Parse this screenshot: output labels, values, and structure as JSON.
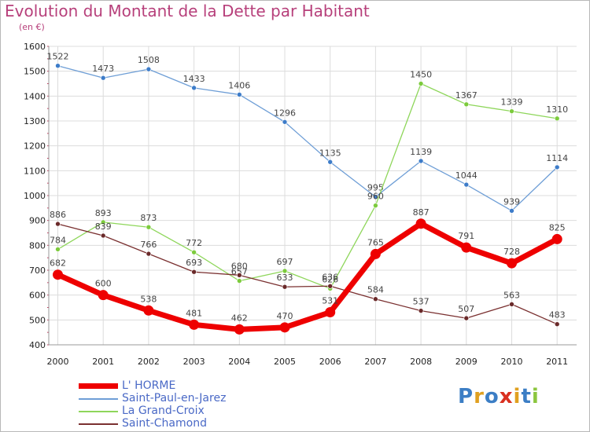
{
  "title": "Evolution du Montant de la Dette par Habitant",
  "subtitle": "(en €)",
  "logo": {
    "text": "Proxiti",
    "colors": [
      "#3c7ec5",
      "#e0a020",
      "#3c7ec5",
      "#d93020",
      "#e0a020",
      "#3c7ec5",
      "#8cc63f"
    ]
  },
  "chart_data": {
    "type": "line",
    "x": [
      "2000",
      "2001",
      "2002",
      "2003",
      "2004",
      "2005",
      "2006",
      "2007",
      "2008",
      "2009",
      "2010",
      "2011"
    ],
    "ylim": [
      400,
      1600
    ],
    "yticks": [
      400,
      500,
      600,
      700,
      800,
      900,
      1000,
      1100,
      1200,
      1300,
      1400,
      1500,
      1600
    ],
    "grid": true,
    "series": [
      {
        "name": "Saint-Paul-en-Jarez",
        "color": "#6e9ed6",
        "marker": "#3d7cc9",
        "width": 1.3,
        "values": [
          1522,
          1473,
          1508,
          1433,
          1406,
          1296,
          1135,
          995,
          1139,
          1044,
          939,
          1114
        ]
      },
      {
        "name": "La Grand-Croix",
        "color": "#8ed65a",
        "marker": "#7ccb3c",
        "width": 1.3,
        "values": [
          784,
          893,
          873,
          772,
          657,
          697,
          626,
          960,
          1450,
          1367,
          1339,
          1310
        ]
      },
      {
        "name": "Saint-Chamond",
        "color": "#7a3030",
        "marker": "#6a2a2a",
        "width": 1.3,
        "values": [
          886,
          839,
          766,
          693,
          680,
          633,
          636,
          584,
          537,
          507,
          563,
          483
        ]
      },
      {
        "name": "L' HORME",
        "color": "#ee0000",
        "marker": "#ee0000",
        "width": 7,
        "values": [
          682,
          600,
          538,
          481,
          462,
          470,
          531,
          765,
          887,
          791,
          728,
          825
        ]
      }
    ],
    "legend": [
      "L' HORME",
      "Saint-Paul-en-Jarez",
      "La Grand-Croix",
      "Saint-Chamond"
    ]
  }
}
